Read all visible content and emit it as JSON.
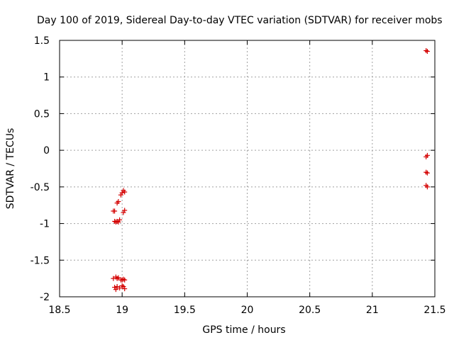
{
  "chart_data": {
    "type": "scatter",
    "title": "Day 100 of 2019, Sidereal Day-to-day VTEC variation (SDTVAR) for receiver mobs",
    "xlabel": "GPS time / hours",
    "ylabel": "SDTVAR / TECUs",
    "xlim": [
      18.5,
      21.5
    ],
    "ylim": [
      -2,
      1.5
    ],
    "xticks": [
      "18.5",
      "19",
      "19.5",
      "20",
      "20.5",
      "21",
      "21.5"
    ],
    "yticks": [
      "1.5",
      "1",
      "0.5",
      "0",
      "-0.5",
      "-1",
      "-1.5",
      "-2"
    ],
    "grid": true,
    "marker_color": "#d40000",
    "series": [
      {
        "points": [
          [
            18.93,
            -0.83
          ],
          [
            18.94,
            -0.83
          ],
          [
            18.94,
            -0.97
          ],
          [
            18.95,
            -0.98
          ],
          [
            18.96,
            -0.72
          ],
          [
            18.96,
            -0.97
          ],
          [
            18.97,
            -0.7
          ],
          [
            18.97,
            -0.98
          ],
          [
            18.98,
            -0.95
          ],
          [
            18.99,
            -0.61
          ],
          [
            19.0,
            -0.58
          ],
          [
            19.01,
            -0.55
          ],
          [
            19.01,
            -0.85
          ],
          [
            19.02,
            -0.82
          ],
          [
            19.02,
            -0.57
          ],
          [
            18.93,
            -1.75
          ],
          [
            18.94,
            -1.87
          ],
          [
            18.95,
            -1.73
          ],
          [
            18.95,
            -1.9
          ],
          [
            18.96,
            -1.75
          ],
          [
            18.96,
            -1.86
          ],
          [
            18.97,
            -1.74
          ],
          [
            18.98,
            -1.88
          ],
          [
            18.99,
            -1.77
          ],
          [
            19.0,
            -1.85
          ],
          [
            19.0,
            -1.77
          ],
          [
            19.01,
            -1.86
          ],
          [
            19.01,
            -1.76
          ],
          [
            19.02,
            -1.89
          ],
          [
            19.02,
            -1.77
          ],
          [
            21.43,
            1.36
          ],
          [
            21.44,
            1.35
          ],
          [
            21.44,
            -0.07
          ],
          [
            21.43,
            -0.09
          ],
          [
            21.43,
            -0.3
          ],
          [
            21.44,
            -0.31
          ],
          [
            21.43,
            -0.48
          ],
          [
            21.44,
            -0.5
          ]
        ]
      }
    ]
  }
}
